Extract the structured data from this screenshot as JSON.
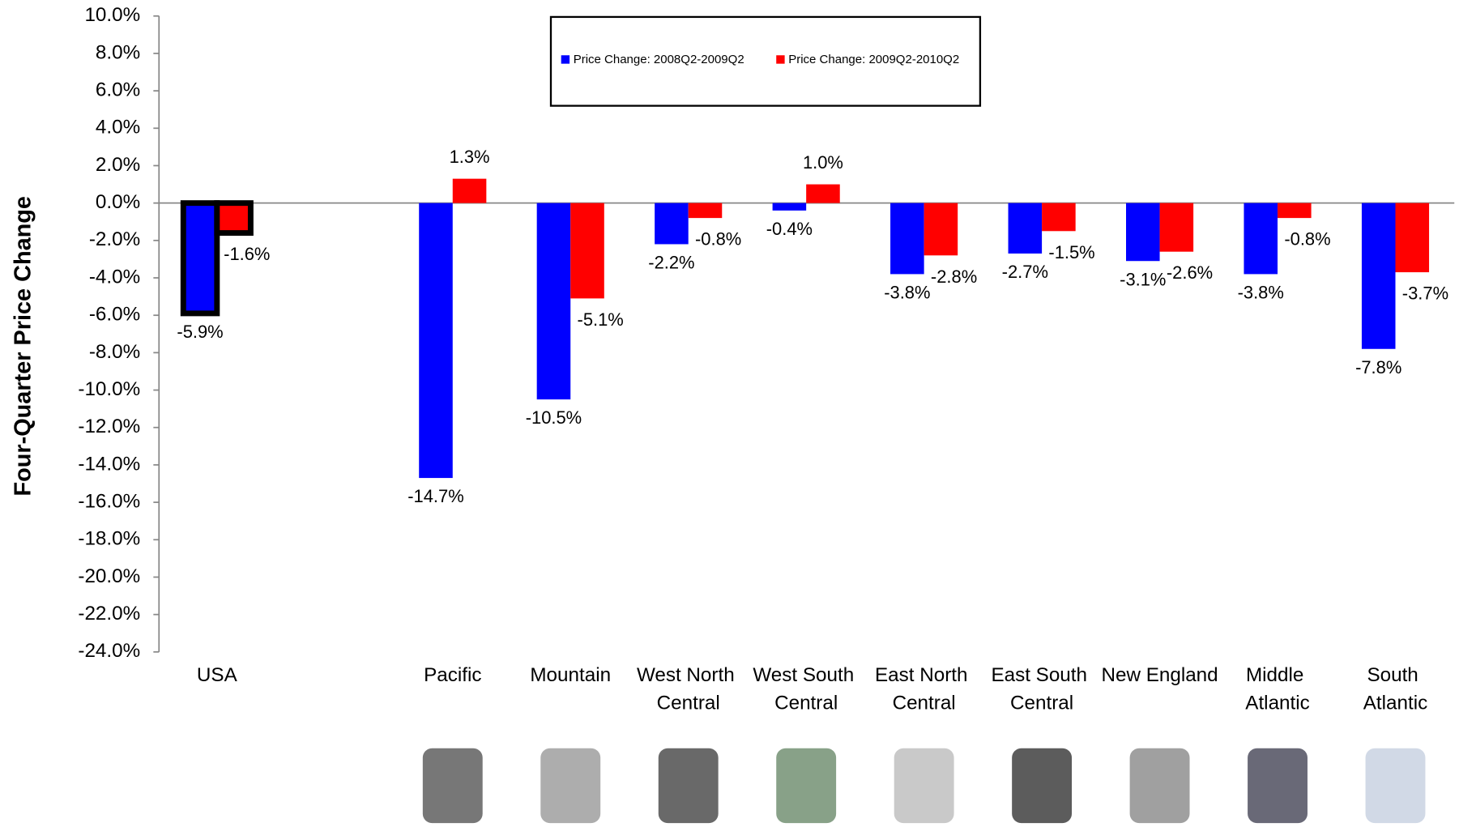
{
  "chart_data": {
    "type": "bar",
    "y_label": "Four-Quarter Price Change",
    "categories": [
      "USA",
      null,
      "Pacific",
      "Mountain",
      "West North Central",
      "West South Central",
      "East North Central",
      "East South Central",
      "New England",
      "Middle Atlantic",
      "South Atlantic"
    ],
    "series": [
      {
        "name": "Price Change: 2008Q2-2009Q2",
        "color": "#0000ff",
        "values": [
          -5.9,
          null,
          -14.7,
          -10.5,
          -2.2,
          -0.4,
          -3.8,
          -2.7,
          -3.1,
          -3.8,
          -7.8
        ],
        "value_labels": [
          "-5.9%",
          null,
          "-14.7%",
          "-10.5%",
          "-2.2%",
          "-0.4%",
          "-3.8%",
          "-2.7%",
          "-3.1%",
          "-3.8%",
          "-7.8%"
        ]
      },
      {
        "name": "Price Change: 2009Q2-2010Q2",
        "color": "#ff0000",
        "values": [
          -1.6,
          null,
          1.3,
          -5.1,
          -0.8,
          1.0,
          -2.8,
          -1.5,
          -2.6,
          -0.8,
          -3.7
        ],
        "value_labels": [
          "-1.6%",
          null,
          "1.3%",
          "-5.1%",
          "-0.8%",
          "1.0%",
          "-2.8%",
          "-1.5%",
          "-2.6%",
          "-0.8%",
          "-3.7%"
        ]
      }
    ],
    "ylim": [
      -24,
      10
    ],
    "yticks": [
      {
        "value": 10,
        "label": "10.0%"
      },
      {
        "value": 8,
        "label": "8.0%"
      },
      {
        "value": 6,
        "label": "6.0%"
      },
      {
        "value": 4,
        "label": "4.0%"
      },
      {
        "value": 2,
        "label": "2.0%"
      },
      {
        "value": 0,
        "label": "0.0%"
      },
      {
        "value": -2,
        "label": "-2.0%"
      },
      {
        "value": -4,
        "label": "-4.0%"
      },
      {
        "value": -6,
        "label": "-6.0%"
      },
      {
        "value": -8,
        "label": "-8.0%"
      },
      {
        "value": -10,
        "label": "-10.0%"
      },
      {
        "value": -12,
        "label": "-12.0%"
      },
      {
        "value": -14,
        "label": "-14.0%"
      },
      {
        "value": -16,
        "label": "-16.0%"
      },
      {
        "value": -18,
        "label": "-18.0%"
      },
      {
        "value": -20,
        "label": "-20.0%"
      },
      {
        "value": -22,
        "label": "-22.0%"
      },
      {
        "value": -24,
        "label": "-24.0%"
      }
    ],
    "highlight_category": "USA",
    "legend_position": "top"
  }
}
